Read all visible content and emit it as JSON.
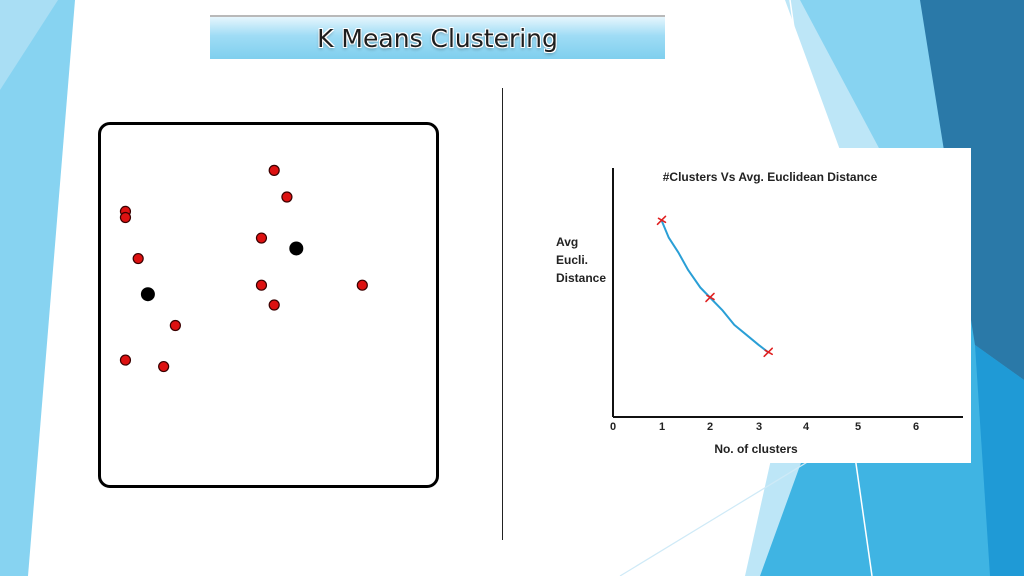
{
  "slide": {
    "title": "K Means Clustering",
    "colors": {
      "accent_light": "#87d3f1",
      "accent_mid": "#3fb4e3",
      "accent_dark": "#2a79a8",
      "point_red": "#dd1111",
      "centroid": "#000000",
      "curve": "#2a9fd6",
      "marker": "#e02020"
    }
  },
  "scatter_data": {
    "type": "scatter",
    "points": [
      [
        0.073,
        0.24
      ],
      [
        0.073,
        0.257
      ],
      [
        0.111,
        0.371
      ],
      [
        0.222,
        0.557
      ],
      [
        0.073,
        0.653
      ],
      [
        0.187,
        0.671
      ],
      [
        0.517,
        0.126
      ],
      [
        0.555,
        0.2
      ],
      [
        0.479,
        0.314
      ],
      [
        0.479,
        0.445
      ],
      [
        0.517,
        0.5
      ],
      [
        0.78,
        0.445
      ]
    ],
    "centroids": [
      [
        0.14,
        0.47
      ],
      [
        0.583,
        0.343
      ]
    ]
  },
  "chart_data": {
    "type": "line",
    "title": "#Clusters Vs Avg. Euclidean Distance",
    "xlabel": "No. of clusters",
    "ylabel_lines": [
      "Avg",
      "Eucli.",
      "Distance"
    ],
    "x_ticks": [
      "0",
      "1",
      "2",
      "4",
      "3",
      "5",
      "6"
    ],
    "xlim": [
      0,
      6.5
    ],
    "ylim": [
      0,
      10
    ],
    "series": [
      {
        "x": [
          1.0,
          1.15,
          1.35,
          1.55,
          1.8,
          2.0,
          2.25,
          2.5,
          2.75,
          3.0,
          3.2
        ],
        "y": [
          7.9,
          7.2,
          6.6,
          5.9,
          5.2,
          4.8,
          4.3,
          3.7,
          3.3,
          2.9,
          2.6
        ]
      }
    ],
    "markers": [
      {
        "x": 1.0,
        "y": 7.9
      },
      {
        "x": 2.0,
        "y": 4.8
      },
      {
        "x": 3.2,
        "y": 2.6
      }
    ]
  }
}
